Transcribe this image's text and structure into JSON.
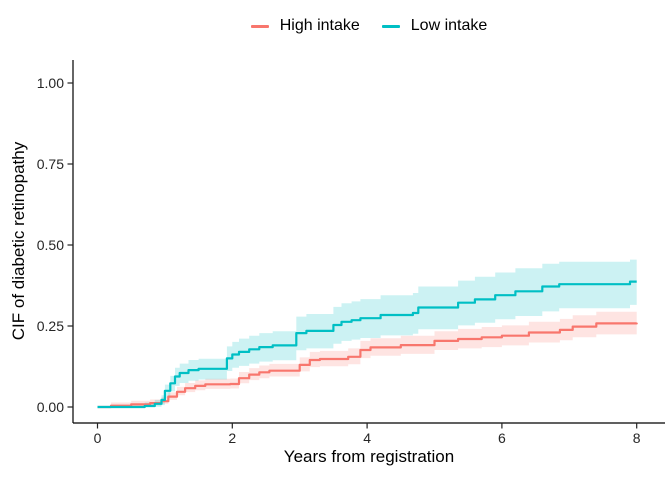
{
  "chart_data": {
    "type": "line",
    "subtype": "step-cumulative-incidence-with-confidence-bands",
    "title": "",
    "xlabel": "Years from registration",
    "ylabel": "CIF of diabetic retinopathy",
    "xlim": [
      0,
      8
    ],
    "ylim": [
      0,
      1
    ],
    "x_ticks": [
      0,
      2,
      4,
      6,
      8
    ],
    "y_ticks": [
      0,
      0.25,
      0.5,
      0.75,
      1
    ],
    "y_tick_labels": [
      "0.00",
      "0.25",
      "0.50",
      "0.75",
      "1.00"
    ],
    "grid": false,
    "legend_position": "top-center",
    "band_opacity": 0.2,
    "point_format": "[years, cif, ci_low, ci_high]",
    "series": [
      {
        "name": "High intake",
        "color": "#F8766D",
        "points": [
          [
            0,
            0,
            0,
            0
          ],
          [
            0.2,
            0.004,
            0,
            0.014
          ],
          [
            0.5,
            0.008,
            0.001,
            0.019
          ],
          [
            0.78,
            0.012,
            0.005,
            0.023
          ],
          [
            0.95,
            0.018,
            0.01,
            0.03
          ],
          [
            1.05,
            0.032,
            0.022,
            0.045
          ],
          [
            1.18,
            0.047,
            0.036,
            0.062
          ],
          [
            1.3,
            0.058,
            0.046,
            0.074
          ],
          [
            1.45,
            0.065,
            0.052,
            0.082
          ],
          [
            1.6,
            0.07,
            0.056,
            0.087
          ],
          [
            1.97,
            0.071,
            0.057,
            0.088
          ],
          [
            2.1,
            0.089,
            0.073,
            0.108
          ],
          [
            2.25,
            0.1,
            0.083,
            0.12
          ],
          [
            2.4,
            0.107,
            0.089,
            0.128
          ],
          [
            2.55,
            0.112,
            0.094,
            0.133
          ],
          [
            3.0,
            0.13,
            0.11,
            0.153
          ],
          [
            3.15,
            0.145,
            0.123,
            0.17
          ],
          [
            3.3,
            0.148,
            0.126,
            0.173
          ],
          [
            3.72,
            0.155,
            0.132,
            0.181
          ],
          [
            3.9,
            0.176,
            0.151,
            0.204
          ],
          [
            4.05,
            0.184,
            0.158,
            0.212
          ],
          [
            4.5,
            0.191,
            0.164,
            0.22
          ],
          [
            5.0,
            0.204,
            0.176,
            0.234
          ],
          [
            5.35,
            0.21,
            0.181,
            0.241
          ],
          [
            5.7,
            0.215,
            0.185,
            0.247
          ],
          [
            6.0,
            0.22,
            0.19,
            0.252
          ],
          [
            6.4,
            0.23,
            0.199,
            0.263
          ],
          [
            6.86,
            0.238,
            0.206,
            0.272
          ],
          [
            7.05,
            0.248,
            0.215,
            0.283
          ],
          [
            7.4,
            0.258,
            0.224,
            0.294
          ],
          [
            8.0,
            0.26,
            0.225,
            0.296
          ]
        ]
      },
      {
        "name": "Low intake",
        "color": "#00BFC4",
        "points": [
          [
            0,
            0,
            0,
            0
          ],
          [
            0.7,
            0.003,
            0,
            0.014
          ],
          [
            0.85,
            0.01,
            0.001,
            0.022
          ],
          [
            0.95,
            0.022,
            0.006,
            0.036
          ],
          [
            1.0,
            0.05,
            0.029,
            0.069
          ],
          [
            1.08,
            0.073,
            0.048,
            0.096
          ],
          [
            1.15,
            0.094,
            0.065,
            0.121
          ],
          [
            1.22,
            0.105,
            0.074,
            0.134
          ],
          [
            1.35,
            0.114,
            0.081,
            0.145
          ],
          [
            1.5,
            0.118,
            0.085,
            0.149
          ],
          [
            1.88,
            0.118,
            0.085,
            0.149
          ],
          [
            1.92,
            0.15,
            0.111,
            0.187
          ],
          [
            2.0,
            0.162,
            0.121,
            0.201
          ],
          [
            2.1,
            0.17,
            0.127,
            0.211
          ],
          [
            2.25,
            0.178,
            0.134,
            0.22
          ],
          [
            2.4,
            0.185,
            0.14,
            0.228
          ],
          [
            2.6,
            0.19,
            0.144,
            0.234
          ],
          [
            2.95,
            0.228,
            0.175,
            0.279
          ],
          [
            3.1,
            0.235,
            0.181,
            0.287
          ],
          [
            3.5,
            0.253,
            0.195,
            0.309
          ],
          [
            3.62,
            0.263,
            0.204,
            0.32
          ],
          [
            3.77,
            0.268,
            0.208,
            0.326
          ],
          [
            3.9,
            0.274,
            0.213,
            0.333
          ],
          [
            4.2,
            0.284,
            0.221,
            0.345
          ],
          [
            4.68,
            0.29,
            0.226,
            0.352
          ],
          [
            4.76,
            0.307,
            0.24,
            0.372
          ],
          [
            5.35,
            0.322,
            0.252,
            0.39
          ],
          [
            5.6,
            0.332,
            0.26,
            0.402
          ],
          [
            5.9,
            0.345,
            0.271,
            0.415
          ],
          [
            6.2,
            0.357,
            0.281,
            0.428
          ],
          [
            6.6,
            0.372,
            0.295,
            0.442
          ],
          [
            6.85,
            0.379,
            0.305,
            0.448
          ],
          [
            7.9,
            0.387,
            0.315,
            0.455
          ],
          [
            8.0,
            0.387,
            0.315,
            0.455
          ]
        ]
      }
    ]
  }
}
